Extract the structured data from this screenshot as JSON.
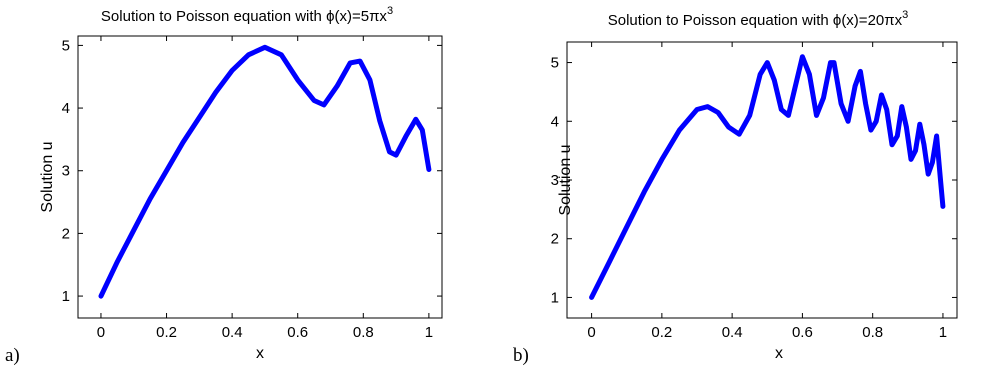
{
  "colors": {
    "line": "#0000ff"
  },
  "panels": [
    {
      "label": "a)",
      "title_prefix": "Solution to Poisson equation with ",
      "phi": "ϕ",
      "title_mid": "(x)=5πx",
      "title_exp": "3"
    },
    {
      "label": "b)",
      "title_prefix": "Solution to Poisson equation with ",
      "phi": "ϕ",
      "title_mid": "(x)=20πx",
      "title_exp": "3"
    }
  ],
  "chart_data": [
    {
      "type": "line",
      "xlabel": "x",
      "ylabel": "Solution u",
      "xlim": [
        -0.07,
        1.04
      ],
      "ylim": [
        0.65,
        5.15
      ],
      "xticks": [
        0,
        0.2,
        0.4,
        0.6,
        0.8,
        1
      ],
      "xtick_labels": [
        "0",
        "0.2",
        "0.4",
        "0.6",
        "0.8",
        "1"
      ],
      "yticks": [
        1,
        2,
        3,
        4,
        5
      ],
      "ytick_labels": [
        "1",
        "2",
        "3",
        "4",
        "5"
      ],
      "grid": false,
      "series": [
        {
          "x": [
            0,
            0.05,
            0.1,
            0.15,
            0.2,
            0.25,
            0.3,
            0.35,
            0.4,
            0.45,
            0.5,
            0.55,
            0.6,
            0.65,
            0.68,
            0.72,
            0.76,
            0.79,
            0.82,
            0.85,
            0.88,
            0.9,
            0.93,
            0.96,
            0.98,
            1.0
          ],
          "y": [
            1.0,
            1.55,
            2.05,
            2.55,
            3.0,
            3.45,
            3.85,
            4.25,
            4.6,
            4.85,
            4.97,
            4.85,
            4.45,
            4.12,
            4.05,
            4.35,
            4.72,
            4.75,
            4.45,
            3.8,
            3.3,
            3.25,
            3.55,
            3.82,
            3.65,
            3.02
          ]
        }
      ]
    },
    {
      "type": "line",
      "xlabel": "x",
      "ylabel": "Solution u",
      "xlim": [
        -0.07,
        1.04
      ],
      "ylim": [
        0.65,
        5.35
      ],
      "xticks": [
        0,
        0.2,
        0.4,
        0.6,
        0.8,
        1
      ],
      "xtick_labels": [
        "0",
        "0.2",
        "0.4",
        "0.6",
        "0.8",
        "1"
      ],
      "yticks": [
        1,
        2,
        3,
        4,
        5
      ],
      "ytick_labels": [
        "1",
        "2",
        "3",
        "4",
        "5"
      ],
      "grid": false,
      "series": [
        {
          "x": [
            0,
            0.05,
            0.1,
            0.15,
            0.2,
            0.25,
            0.3,
            0.33,
            0.36,
            0.39,
            0.42,
            0.45,
            0.48,
            0.5,
            0.52,
            0.54,
            0.56,
            0.58,
            0.6,
            0.62,
            0.64,
            0.66,
            0.68,
            0.69,
            0.71,
            0.73,
            0.75,
            0.765,
            0.78,
            0.795,
            0.81,
            0.825,
            0.84,
            0.855,
            0.87,
            0.883,
            0.896,
            0.909,
            0.922,
            0.934,
            0.946,
            0.958,
            0.97,
            0.982,
            0.993,
            1.0
          ],
          "y": [
            1.0,
            1.6,
            2.2,
            2.8,
            3.35,
            3.85,
            4.2,
            4.25,
            4.15,
            3.9,
            3.78,
            4.1,
            4.8,
            5.0,
            4.7,
            4.2,
            4.1,
            4.6,
            5.1,
            4.8,
            4.1,
            4.4,
            5.0,
            5.0,
            4.3,
            4.0,
            4.6,
            4.85,
            4.3,
            3.85,
            4.0,
            4.45,
            4.2,
            3.6,
            3.75,
            4.25,
            3.9,
            3.35,
            3.5,
            3.95,
            3.6,
            3.1,
            3.3,
            3.75,
            3.0,
            2.55
          ]
        }
      ]
    }
  ]
}
